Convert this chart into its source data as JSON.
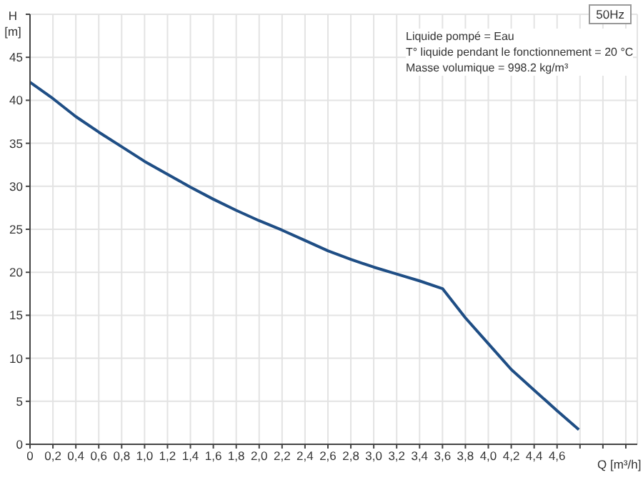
{
  "chart_data": {
    "type": "line",
    "title": "50Hz",
    "xlabel": "Q [m³/h]",
    "ylabel": "H [m]",
    "x": [
      0,
      0.2,
      0.4,
      0.6,
      0.8,
      1.0,
      1.2,
      1.4,
      1.6,
      1.8,
      2.0,
      2.2,
      2.4,
      2.6,
      2.8,
      3.0,
      3.2,
      3.4,
      3.6,
      3.8,
      4.0,
      4.2,
      4.4,
      4.6,
      4.79
    ],
    "series": [
      {
        "color": "#1f4e85",
        "values": [
          42.1,
          40.2,
          38.1,
          36.3,
          34.6,
          32.9,
          31.4,
          29.9,
          28.5,
          27.2,
          26.0,
          24.9,
          23.7,
          22.5,
          21.5,
          20.6,
          19.8,
          19.0,
          18.1,
          14.7,
          11.7,
          8.7,
          6.3,
          3.9,
          1.7
        ]
      }
    ],
    "xlim": [
      0,
      5.3
    ],
    "xticks": [
      0,
      {
        "value": 0.2,
        "label": "0,2"
      },
      {
        "value": 0.4,
        "label": "0,4"
      },
      {
        "value": 0.6,
        "label": "0,6"
      },
      {
        "value": 0.8,
        "label": "0,8"
      },
      {
        "value": 1.0,
        "label": "1,0"
      },
      {
        "value": 1.2,
        "label": "1,2"
      },
      {
        "value": 1.4,
        "label": "1,4"
      },
      {
        "value": 1.6,
        "label": "1,6"
      },
      {
        "value": 1.8,
        "label": "1,8"
      },
      {
        "value": 2.0,
        "label": "2,0"
      },
      {
        "value": 2.2,
        "label": "2,2"
      },
      {
        "value": 2.4,
        "label": "2,4"
      },
      {
        "value": 2.6,
        "label": "2,6"
      },
      {
        "value": 2.8,
        "label": "2,8"
      },
      {
        "value": 3.0,
        "label": "3,0"
      },
      {
        "value": 3.2,
        "label": "3,2"
      },
      {
        "value": 3.4,
        "label": "3,4"
      },
      {
        "value": 3.6,
        "label": "3,6"
      },
      {
        "value": 3.8,
        "label": "3,8"
      },
      {
        "value": 4.0,
        "label": "4,0"
      },
      {
        "value": 4.2,
        "label": "4,2"
      },
      {
        "value": 4.4,
        "label": "4,4"
      },
      {
        "value": 4.6,
        "label": "4,6"
      },
      {
        "value": 4.8,
        "label": null
      },
      {
        "value": 5.0,
        "label": null
      },
      {
        "value": 5.2,
        "label": null
      }
    ],
    "ylim": [
      0,
      50
    ],
    "yticks": [
      0,
      5,
      10,
      15,
      20,
      25,
      30,
      35,
      40,
      45,
      {
        "value": 50,
        "label": null
      }
    ],
    "grid": true,
    "marker": "none",
    "line_style": "solid",
    "annotations": [
      "Liquide pompé = Eau",
      "T° liquide pendant le fonctionnement = 20 °C",
      "Masse volumique = 998.2 kg/m³"
    ]
  }
}
